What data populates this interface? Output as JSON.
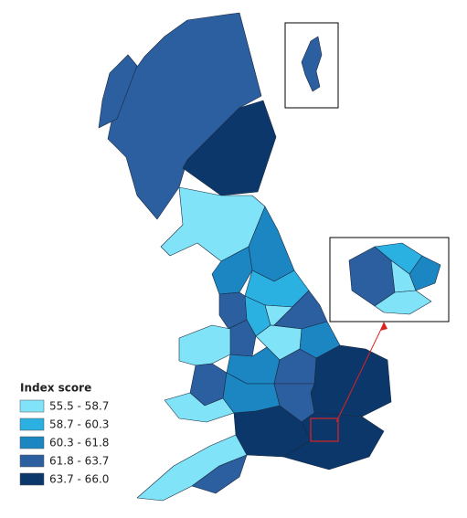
{
  "legend": {
    "title": "Index score",
    "items": [
      {
        "label": "55.5 - 58.7",
        "color": "#80e3f7"
      },
      {
        "label": "58.7 - 60.3",
        "color": "#2bb0e2"
      },
      {
        "label": "60.3 - 61.8",
        "color": "#1b86c2"
      },
      {
        "label": "61.8 - 63.7",
        "color": "#2c5fa0"
      },
      {
        "label": "63.7 - 66.0",
        "color": "#0c376b"
      }
    ]
  }
}
